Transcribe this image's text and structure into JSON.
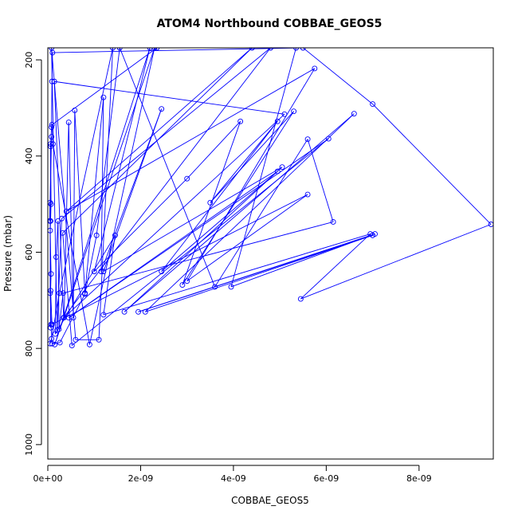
{
  "chart_data": {
    "type": "line",
    "title": "ATOM4 Northbound COBBAE_GEOS5",
    "xlabel": "COBBAE_GEOS5",
    "ylabel": "Pressure (mbar)",
    "xlim": [
      0,
      9.6e-09
    ],
    "ylim": [
      1030,
      175
    ],
    "y_reversed": true,
    "x_ticks": [
      0,
      2e-09,
      4e-09,
      6e-09,
      8e-09
    ],
    "x_tick_labels": [
      "0e+00",
      "2e-09",
      "4e-09",
      "6e-09",
      "8e-09"
    ],
    "y_ticks": [
      200,
      400,
      600,
      800,
      1000
    ],
    "y_tick_labels": [
      "200",
      "400",
      "600",
      "800",
      "1000"
    ],
    "series_color": "#0000ff",
    "marker": "open-circle",
    "series": [
      {
        "points": [
          {
            "x": 5e-11,
            "y": 790
          },
          {
            "x": 8e-11,
            "y": 780
          },
          {
            "x": 2.5e-10,
            "y": 685
          },
          {
            "x": 1.4e-09,
            "y": 175
          },
          {
            "x": 1.1e-09,
            "y": 782
          },
          {
            "x": 6e-10,
            "y": 782
          },
          {
            "x": 8e-11,
            "y": 175
          },
          {
            "x": 2e-10,
            "y": 762
          },
          {
            "x": 3e-10,
            "y": 530
          },
          {
            "x": 4.8e-09,
            "y": 175
          },
          {
            "x": 3.4e-10,
            "y": 736
          },
          {
            "x": 1.4e-10,
            "y": 245
          },
          {
            "x": 5.1e-09,
            "y": 313
          },
          {
            "x": 3.5e-10,
            "y": 736
          },
          {
            "x": 4.5e-10,
            "y": 330
          },
          {
            "x": 5.5e-10,
            "y": 736
          },
          {
            "x": 5.8e-10,
            "y": 305
          },
          {
            "x": 8e-10,
            "y": 685
          },
          {
            "x": 1.2e-09,
            "y": 278
          },
          {
            "x": 1.15e-09,
            "y": 640
          },
          {
            "x": 2.45e-09,
            "y": 302
          },
          {
            "x": 1.2e-09,
            "y": 640
          },
          {
            "x": 5.05e-09,
            "y": 423
          },
          {
            "x": 1.65e-09,
            "y": 724
          },
          {
            "x": 6.6e-09,
            "y": 312
          },
          {
            "x": 2.1e-09,
            "y": 724
          },
          {
            "x": 7e-09,
            "y": 565
          },
          {
            "x": 1.95e-09,
            "y": 724
          },
          {
            "x": 7.05e-09,
            "y": 562
          },
          {
            "x": 3.95e-09,
            "y": 672
          },
          {
            "x": 5.35e-09,
            "y": 175
          },
          {
            "x": 2.35e-09,
            "y": 175
          },
          {
            "x": 9e-11,
            "y": 335
          },
          {
            "x": 1.1e-10,
            "y": 375
          },
          {
            "x": 9e-10,
            "y": 792
          },
          {
            "x": 2.3e-09,
            "y": 175
          },
          {
            "x": 1.5e-10,
            "y": 792
          },
          {
            "x": 2.2e-09,
            "y": 175
          },
          {
            "x": 1e-09,
            "y": 640
          },
          {
            "x": 3e-09,
            "y": 447
          },
          {
            "x": 4.15e-09,
            "y": 328
          },
          {
            "x": 2.9e-09,
            "y": 668
          },
          {
            "x": 5.3e-09,
            "y": 307
          },
          {
            "x": 3.5e-09,
            "y": 497
          },
          {
            "x": 4.95e-09,
            "y": 328
          },
          {
            "x": 2.45e-09,
            "y": 640
          },
          {
            "x": 4.95e-09,
            "y": 432
          },
          {
            "x": 4.5e-10,
            "y": 736
          },
          {
            "x": 6.05e-09,
            "y": 364
          },
          {
            "x": 5.2e-10,
            "y": 794
          },
          {
            "x": 3.2e-10,
            "y": 560
          },
          {
            "x": 4.4e-09,
            "y": 175
          },
          {
            "x": 4e-10,
            "y": 515
          },
          {
            "x": 5.75e-09,
            "y": 218
          },
          {
            "x": 3e-09,
            "y": 660
          },
          {
            "x": 5.6e-09,
            "y": 480
          },
          {
            "x": 9e-11,
            "y": 750
          },
          {
            "x": 6e-11,
            "y": 680
          },
          {
            "x": 7e-11,
            "y": 645
          },
          {
            "x": 5e-11,
            "y": 555
          },
          {
            "x": 6e-11,
            "y": 535
          },
          {
            "x": 7e-11,
            "y": 500
          },
          {
            "x": 6e-11,
            "y": 380
          },
          {
            "x": 8e-11,
            "y": 340
          },
          {
            "x": 9e-11,
            "y": 245
          },
          {
            "x": 1e-10,
            "y": 185
          },
          {
            "x": 5.5e-09,
            "y": 175
          },
          {
            "x": 7e-09,
            "y": 292
          },
          {
            "x": 9.55e-09,
            "y": 542
          },
          {
            "x": 5.45e-09,
            "y": 697
          },
          {
            "x": 6.95e-09,
            "y": 562
          },
          {
            "x": 1.2e-09,
            "y": 730
          },
          {
            "x": 1.45e-09,
            "y": 565
          },
          {
            "x": 1.6e-10,
            "y": 770
          },
          {
            "x": 1.8e-10,
            "y": 610
          },
          {
            "x": 2.2e-10,
            "y": 535
          },
          {
            "x": 2.4e-10,
            "y": 760
          },
          {
            "x": 3.3e-10,
            "y": 685
          },
          {
            "x": 6.15e-09,
            "y": 537
          },
          {
            "x": 5.6e-09,
            "y": 365
          },
          {
            "x": 3.6e-09,
            "y": 672
          },
          {
            "x": 1.55e-09,
            "y": 175
          },
          {
            "x": 1.05e-09,
            "y": 565
          },
          {
            "x": 8e-10,
            "y": 687
          },
          {
            "x": 2.6e-10,
            "y": 788
          },
          {
            "x": 9e-11,
            "y": 790
          },
          {
            "x": 7e-11,
            "y": 750
          },
          {
            "x": 5e-11,
            "y": 685
          },
          {
            "x": 6e-11,
            "y": 375
          },
          {
            "x": 8e-11,
            "y": 360
          },
          {
            "x": 4e-11,
            "y": 535
          },
          {
            "x": 5e-11,
            "y": 497
          },
          {
            "x": 6e-11,
            "y": 757
          }
        ]
      }
    ]
  }
}
